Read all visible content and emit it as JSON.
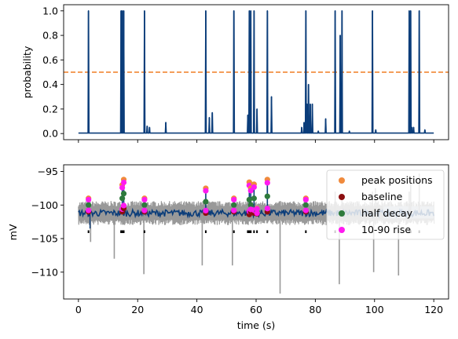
{
  "chart_data": [
    {
      "type": "line",
      "ylabel": "probability",
      "xlim": [
        -5,
        125
      ],
      "ylim": [
        -0.05,
        1.05
      ],
      "yticks": [
        0.0,
        0.2,
        0.4,
        0.6,
        0.8,
        1.0
      ],
      "ytick_labels": [
        "0.0",
        "0.2",
        "0.4",
        "0.6",
        "0.8",
        "1.0"
      ],
      "xticks": [
        0,
        20,
        40,
        60,
        80,
        100,
        120
      ],
      "threshold": 0.5,
      "baseline": 0.004,
      "spikes": [
        {
          "x": 3.4,
          "y": 1.0
        },
        {
          "x": 14.4,
          "y": 1.0
        },
        {
          "x": 14.8,
          "y": 1.0
        },
        {
          "x": 15.3,
          "y": 1.0
        },
        {
          "x": 22.3,
          "y": 1.0
        },
        {
          "x": 23.2,
          "y": 0.06
        },
        {
          "x": 24.0,
          "y": 0.05
        },
        {
          "x": 29.5,
          "y": 0.09
        },
        {
          "x": 43.0,
          "y": 1.0
        },
        {
          "x": 44.2,
          "y": 0.13
        },
        {
          "x": 45.2,
          "y": 0.17
        },
        {
          "x": 52.5,
          "y": 1.0
        },
        {
          "x": 57.2,
          "y": 0.15
        },
        {
          "x": 57.7,
          "y": 1.0
        },
        {
          "x": 58.2,
          "y": 1.0
        },
        {
          "x": 59.3,
          "y": 1.0
        },
        {
          "x": 60.3,
          "y": 0.2
        },
        {
          "x": 63.8,
          "y": 1.0
        },
        {
          "x": 65.2,
          "y": 0.3
        },
        {
          "x": 75.4,
          "y": 0.05
        },
        {
          "x": 76.2,
          "y": 0.09
        },
        {
          "x": 76.8,
          "y": 1.0
        },
        {
          "x": 77.2,
          "y": 0.24
        },
        {
          "x": 77.7,
          "y": 0.4
        },
        {
          "x": 78.3,
          "y": 0.24
        },
        {
          "x": 79.0,
          "y": 0.24
        },
        {
          "x": 81.0,
          "y": 0.02
        },
        {
          "x": 83.5,
          "y": 0.12
        },
        {
          "x": 86.7,
          "y": 1.0
        },
        {
          "x": 88.4,
          "y": 0.8
        },
        {
          "x": 89.0,
          "y": 1.0
        },
        {
          "x": 91.5,
          "y": 0.02
        },
        {
          "x": 99.3,
          "y": 1.0
        },
        {
          "x": 100.4,
          "y": 0.03
        },
        {
          "x": 111.7,
          "y": 1.0
        },
        {
          "x": 112.2,
          "y": 1.0
        },
        {
          "x": 112.6,
          "y": 0.05
        },
        {
          "x": 113.2,
          "y": 0.05
        },
        {
          "x": 115.1,
          "y": 1.0
        },
        {
          "x": 117.0,
          "y": 0.03
        }
      ],
      "colors": {
        "line": "#0b3d7a",
        "threshold": "#f07f24"
      }
    },
    {
      "type": "scatter",
      "xlabel": "time (s)",
      "ylabel": "mV",
      "xlim": [
        -5,
        125
      ],
      "ylim": [
        -114,
        -94
      ],
      "yticks": [
        -110,
        -105,
        -100,
        -95
      ],
      "ytick_labels": [
        "−110",
        "−105",
        "−100",
        "−95"
      ],
      "xticks": [
        0,
        20,
        40,
        60,
        80,
        100,
        120
      ],
      "xtick_labels": [
        "0",
        "20",
        "40",
        "60",
        "80",
        "100",
        "120"
      ],
      "trace_level": -101.2,
      "colors": {
        "trace": "#0b3d7a",
        "noise": "#999999",
        "peak": "#f08a3c",
        "baseline": "#8c0f10",
        "half_decay": "#2e7a3c",
        "rise": "#ff1af0",
        "event_marker": "#000000"
      },
      "legend": {
        "location": "upper right",
        "entries": [
          "peak positions",
          "baseline",
          "half decay",
          "10-90 rise"
        ]
      },
      "events": [
        {
          "x": 3.4,
          "peak": -99.0,
          "baseline": -101.0,
          "half_decay": -100.0
        },
        {
          "x": 14.8,
          "peak": -97.0,
          "baseline": -101.0,
          "half_decay": -99.0
        },
        {
          "x": 15.3,
          "peak": -96.2,
          "baseline": -100.5,
          "half_decay": -98.3
        },
        {
          "x": 22.3,
          "peak": -99.0,
          "baseline": -101.0,
          "half_decay": -100.0
        },
        {
          "x": 43.0,
          "peak": -97.5,
          "baseline": -101.2,
          "half_decay": -99.5
        },
        {
          "x": 52.5,
          "peak": -99.0,
          "baseline": -101.0,
          "half_decay": -100.0
        },
        {
          "x": 57.7,
          "peak": -96.6,
          "baseline": -101.4,
          "half_decay": -99.2
        },
        {
          "x": 58.2,
          "peak": -97.5,
          "baseline": -101.0,
          "half_decay": -100.0
        },
        {
          "x": 59.3,
          "peak": -96.9,
          "baseline": -101.2,
          "half_decay": -99.0
        },
        {
          "x": 60.3,
          "peak": -100.5,
          "baseline": -101.3,
          "half_decay": -101.0
        },
        {
          "x": 63.8,
          "peak": -96.2,
          "baseline": -101.0,
          "half_decay": -98.7
        },
        {
          "x": 76.8,
          "peak": -99.0,
          "baseline": -101.0,
          "half_decay": -100.0
        }
      ],
      "event_markers_x": [
        3.4,
        14.4,
        14.8,
        15.3,
        22.3,
        43.0,
        52.5,
        57.2,
        57.7,
        58.2,
        59.3,
        60.3,
        63.8,
        76.8,
        86.7,
        89.0,
        99.3,
        111.7,
        112.2,
        115.1
      ],
      "noise_dips": [
        {
          "x": 4.1,
          "y": -105.5
        },
        {
          "x": 12.1,
          "y": -108.0
        },
        {
          "x": 22.1,
          "y": -110.3
        },
        {
          "x": 41.8,
          "y": -109.0
        },
        {
          "x": 52.0,
          "y": -109.0
        },
        {
          "x": 68.1,
          "y": -113.2
        },
        {
          "x": 88.1,
          "y": -111.8
        },
        {
          "x": 99.7,
          "y": -110.0
        },
        {
          "x": 108.1,
          "y": -110.5
        }
      ],
      "extra_peaks": [
        {
          "x": 86.7,
          "y": -98.0
        },
        {
          "x": 89.0,
          "y": -99.0
        },
        {
          "x": 99.3,
          "y": -98.0
        },
        {
          "x": 100.3,
          "y": -97.5
        },
        {
          "x": 111.7,
          "y": -98.0
        },
        {
          "x": 112.2,
          "y": -96.0
        },
        {
          "x": 115.1,
          "y": -95.3
        }
      ]
    }
  ]
}
